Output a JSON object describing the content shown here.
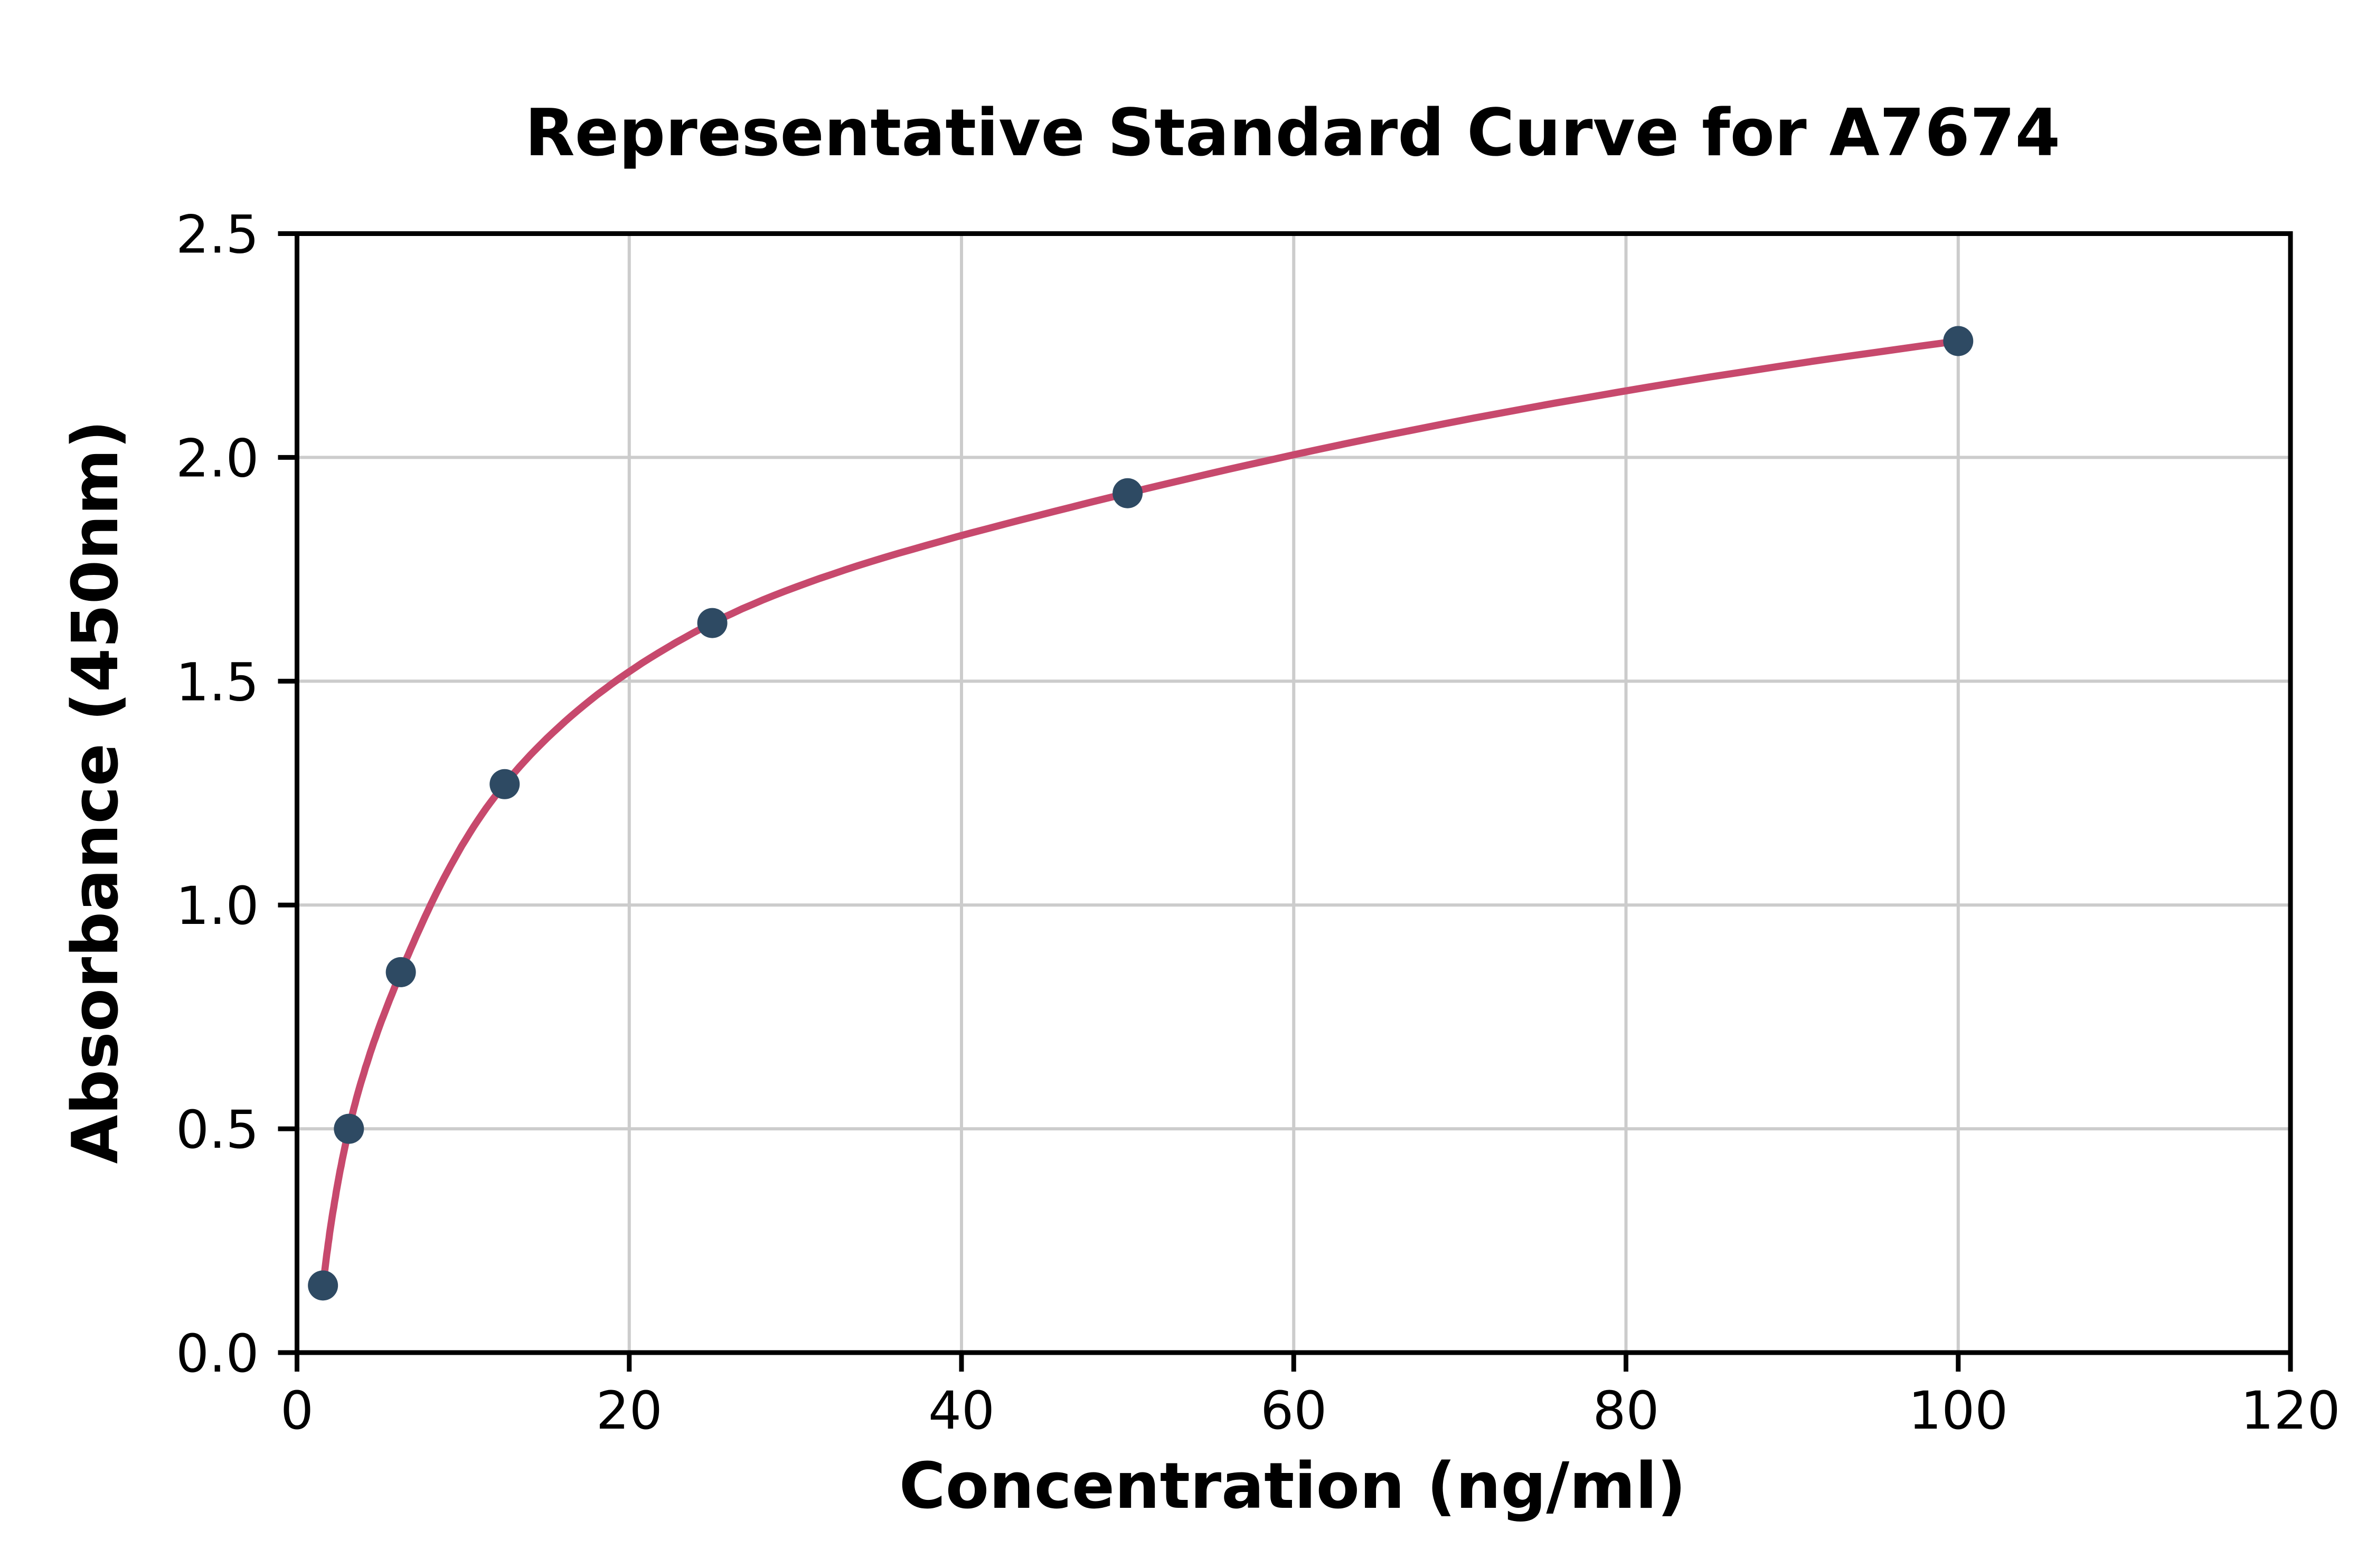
{
  "figure": {
    "background": "#ffffff"
  },
  "chart_data": {
    "type": "scatter",
    "title": "Representative Standard Curve for A7674",
    "xlabel": "Concentration (ng/ml)",
    "ylabel": "Absorbance (450nm)",
    "xlim": [
      0,
      120
    ],
    "ylim": [
      0,
      2.5
    ],
    "x_ticks": [
      "0",
      "20",
      "40",
      "60",
      "80",
      "100",
      "120"
    ],
    "x_tick_values": [
      0,
      20,
      40,
      60,
      80,
      100,
      120
    ],
    "y_ticks": [
      "0.0",
      "0.5",
      "1.0",
      "1.5",
      "2.0",
      "2.5"
    ],
    "y_tick_values": [
      0,
      0.5,
      1.0,
      1.5,
      2.0,
      2.5
    ],
    "grid": true,
    "legend": "none",
    "points": {
      "name": "standards",
      "x": [
        1.5625,
        3.125,
        6.25,
        12.5,
        25,
        50,
        100
      ],
      "y": [
        0.15,
        0.5,
        0.85,
        1.27,
        1.63,
        1.92,
        2.26
      ]
    },
    "fit": {
      "name": "fitted-curve",
      "style": "smooth curve through standards, drawn from first to last point"
    },
    "colors": {
      "points": "#2e4a63",
      "curve": "#c7496d",
      "grid": "#cccccc",
      "axis": "#000000"
    }
  }
}
